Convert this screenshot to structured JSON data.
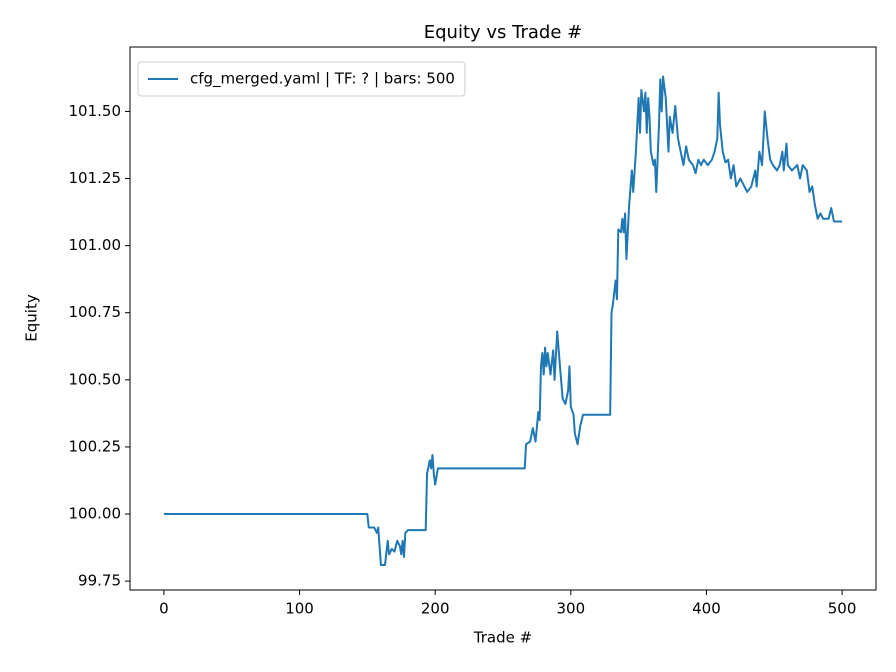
{
  "chart_data": {
    "type": "line",
    "title": "Equity vs Trade #",
    "x_label": "Trade #",
    "y_label": "Equity",
    "xlim": [
      -25,
      525
    ],
    "xticks": [
      0,
      100,
      200,
      300,
      400,
      500
    ],
    "ylim": [
      99.717,
      101.74
    ],
    "yticks": [
      99.75,
      {
        "value": 100,
        "label": "100.00"
      },
      100.25,
      {
        "value": 100.5,
        "label": "100.50"
      },
      100.75,
      {
        "value": 101,
        "label": "101.00"
      },
      101.25,
      {
        "value": 101.5,
        "label": "101.50"
      }
    ],
    "grid": false,
    "legend": "upper left",
    "x": [
      0,
      150,
      151,
      155,
      157,
      158,
      160,
      163,
      165,
      166,
      168,
      170,
      172,
      174,
      175,
      176,
      177,
      178,
      180,
      193,
      194,
      196,
      197,
      198,
      199,
      200,
      202,
      266,
      267,
      270,
      272,
      274,
      276,
      277,
      278,
      279,
      280,
      281,
      282,
      283,
      285,
      287,
      288,
      290,
      292,
      294,
      296,
      298,
      299,
      300,
      302,
      303,
      305,
      307,
      309,
      329,
      330,
      331,
      333,
      334,
      335,
      337,
      338,
      339,
      340,
      341,
      343,
      345,
      346,
      348,
      350,
      351,
      352,
      354,
      355,
      356,
      357,
      358,
      359,
      361,
      362,
      363,
      365,
      366,
      367,
      368,
      370,
      372,
      373,
      375,
      377,
      379,
      381,
      383,
      385,
      387,
      390,
      392,
      394,
      396,
      398,
      401,
      404,
      406,
      408,
      409,
      410,
      412,
      414,
      416,
      418,
      420,
      422,
      425,
      428,
      430,
      433,
      436,
      437,
      439,
      441,
      442,
      443,
      445,
      447,
      449,
      452,
      454,
      456,
      457,
      459,
      460,
      463,
      467,
      469,
      471,
      474,
      476,
      478,
      480,
      482,
      484,
      486,
      490,
      492,
      494,
      500
    ],
    "series": [
      {
        "name": "cfg_merged.yaml | TF: ? | bars: 500",
        "color": "#1f77b4",
        "values": [
          100.0,
          100.0,
          99.95,
          99.95,
          99.93,
          99.95,
          99.81,
          99.81,
          99.9,
          99.85,
          99.87,
          99.86,
          99.9,
          99.88,
          99.85,
          99.9,
          99.84,
          99.93,
          99.94,
          99.94,
          100.15,
          100.2,
          100.17,
          100.22,
          100.15,
          100.11,
          100.17,
          100.17,
          100.26,
          100.27,
          100.32,
          100.27,
          100.38,
          100.35,
          100.55,
          100.6,
          100.52,
          100.62,
          100.55,
          100.6,
          100.52,
          100.61,
          100.5,
          100.68,
          100.55,
          100.43,
          100.41,
          100.46,
          100.55,
          100.4,
          100.37,
          100.3,
          100.26,
          100.33,
          100.37,
          100.37,
          100.75,
          100.78,
          100.87,
          100.8,
          101.06,
          101.05,
          101.1,
          101.05,
          101.12,
          100.95,
          101.15,
          101.28,
          101.2,
          101.35,
          101.55,
          101.42,
          101.58,
          101.5,
          101.57,
          101.42,
          101.55,
          101.48,
          101.35,
          101.3,
          101.32,
          101.2,
          101.45,
          101.62,
          101.5,
          101.63,
          101.55,
          101.35,
          101.48,
          101.42,
          101.52,
          101.4,
          101.35,
          101.3,
          101.37,
          101.32,
          101.3,
          101.27,
          101.32,
          101.3,
          101.32,
          101.3,
          101.32,
          101.35,
          101.4,
          101.57,
          101.45,
          101.35,
          101.31,
          101.32,
          101.25,
          101.3,
          101.22,
          101.25,
          101.22,
          101.2,
          101.22,
          101.28,
          101.22,
          101.35,
          101.3,
          101.4,
          101.5,
          101.4,
          101.32,
          101.3,
          101.28,
          101.3,
          101.35,
          101.28,
          101.38,
          101.3,
          101.28,
          101.3,
          101.25,
          101.3,
          101.28,
          101.2,
          101.22,
          101.15,
          101.1,
          101.12,
          101.1,
          101.1,
          101.14,
          101.09,
          101.09
        ]
      }
    ]
  }
}
